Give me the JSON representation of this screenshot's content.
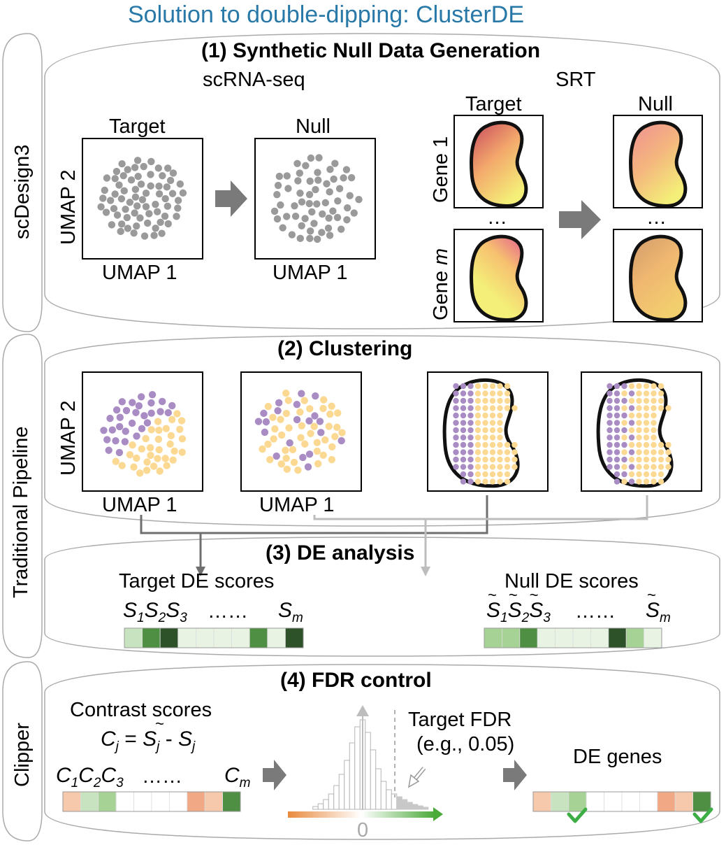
{
  "title": "Solution to double-dipping: ClusterDE",
  "side_labels": {
    "left_top": "scDesign3",
    "left_mid": "Traditional Pipeline",
    "left_bottom": "Clipper"
  },
  "section1": {
    "heading": "(1) Synthetic Null Data Generation",
    "scrna_label": "scRNA-seq",
    "srt_label": "SRT",
    "target_label": "Target",
    "null_label": "Null",
    "umap1": "UMAP 1",
    "umap2": "UMAP 2",
    "gene1": "Gene 1",
    "genem_prefix": "Gene ",
    "genem_var": "m",
    "ellipsis": "…"
  },
  "section2": {
    "heading": "(2) Clustering",
    "umap1": "UMAP 1",
    "umap2": "UMAP 2"
  },
  "section3": {
    "heading": "(3)  DE analysis",
    "target_scores": "Target DE scores",
    "null_scores": "Null DE scores",
    "dots": "……",
    "s1": "S",
    "s1_sub": "1",
    "s2": "S",
    "s2_sub": "2",
    "s3": "S",
    "s3_sub": "3",
    "sm": "S",
    "sm_sub": "m",
    "target_bar_colors": [
      "#c8e3bf",
      "#4e8f43",
      "#2d5128",
      "#e8f3e4",
      "#e8f3e4",
      "#e8f3e4",
      "#e8f3e4",
      "#4e8f43",
      "#e8f3e4",
      "#2d5128"
    ],
    "null_bar_colors": [
      "#a6d395",
      "#a6d395",
      "#4e8f43",
      "#e8f3e4",
      "#e8f3e4",
      "#e8f3e4",
      "#e8f3e4",
      "#2d5128",
      "#a6d395",
      "#e8f3e4"
    ]
  },
  "section4": {
    "heading": "(4) FDR control",
    "contrast_scores": "Contrast scores",
    "formula_c": "C",
    "formula_j": "j",
    "formula_eq": " = ",
    "formula_s": "S",
    "formula_minus": " - ",
    "c1": "C",
    "c1_sub": "1",
    "c2": "C",
    "c2_sub": "2",
    "c3": "C",
    "c3_sub": "3",
    "cm": "C",
    "cm_sub": "m",
    "dots": "……",
    "target_fdr": "Target FDR",
    "fdr_example": "(e.g., 0.05)",
    "zero": "0",
    "de_genes": "DE genes",
    "contrast_bar_colors": [
      "#f6c9ad",
      "#c8e3bf",
      "#a6d395",
      "#ffffff",
      "#ffffff",
      "#ffffff",
      "#ffffff",
      "#f0a984",
      "#f6c9ad",
      "#4e8f43"
    ],
    "de_bar_colors": [
      "#f6c9ad",
      "#c8e3bf",
      "#a6d395",
      "#ffffff",
      "#ffffff",
      "#ffffff",
      "#ffffff",
      "#f0a984",
      "#f6c9ad",
      "#4e8f43"
    ]
  },
  "colors": {
    "title": "#2878a8",
    "purple": "#a98cc4",
    "yellow": "#fbd993",
    "gray_point": "#9a9a9a",
    "green": "#4e8f43",
    "orange": "#e98a3e",
    "check": "#3cae45"
  }
}
